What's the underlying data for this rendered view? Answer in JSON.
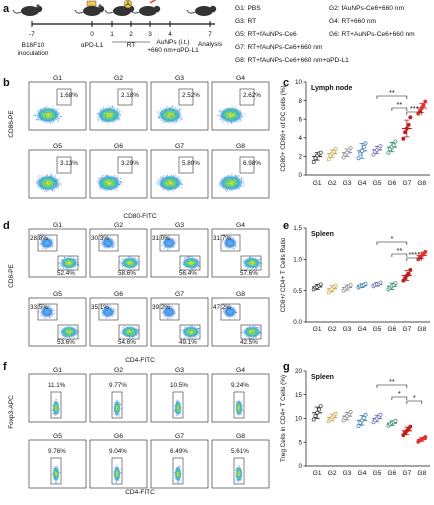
{
  "panel_a": {
    "label": "a",
    "timeline_ticks": [
      "-7",
      "0",
      "1",
      "2",
      "3",
      "4",
      "7"
    ],
    "events": {
      "inoculation": "B16F10\ninoculation",
      "antibody": "αPD-L1",
      "rt": "RT",
      "injection": "AuNPs (i.t.)\n+660 nm+αPD-L1",
      "analysis": "Analysis"
    },
    "groups_left": [
      "G1: PBS",
      "G3: RT",
      "G5: RT+fAuNPs-Ce6",
      "G7: RT+fAuNPs-Ce6+660 nm",
      "G8: RT+fAuNPs-Ce6+660 nm+αPD-L1"
    ],
    "groups_right": [
      "G2: fAuNPs-Ce6+660 nm",
      "G4: RT+660 nm",
      "G6: RT+AuNPs-Ce6+660 nm"
    ]
  },
  "panel_b": {
    "label": "b",
    "ylabel": "CD86-PE",
    "xlabel": "CD80-FITC",
    "plots": [
      {
        "group": "G1",
        "pct": "1.68%"
      },
      {
        "group": "G2",
        "pct": "2.18%"
      },
      {
        "group": "G3",
        "pct": "2.52%"
      },
      {
        "group": "G4",
        "pct": "2.62%"
      },
      {
        "group": "G5",
        "pct": "3.13%"
      },
      {
        "group": "G6",
        "pct": "3.29%"
      },
      {
        "group": "G7",
        "pct": "5.80%"
      },
      {
        "group": "G8",
        "pct": "6.98%"
      }
    ]
  },
  "panel_d": {
    "label": "d",
    "ylabel": "CD8-PE",
    "xlabel": "CD4-FITC",
    "plots": [
      {
        "group": "G1",
        "cd8": "28.8%",
        "cd4": "52.4%"
      },
      {
        "group": "G2",
        "cd8": "30.3%",
        "cd4": "58.6%"
      },
      {
        "group": "G3",
        "cd8": "31.0%",
        "cd4": "56.4%"
      },
      {
        "group": "G4",
        "cd8": "31.7%",
        "cd4": "57.6%"
      },
      {
        "group": "G5",
        "cd8": "33.5%",
        "cd4": "53.6%"
      },
      {
        "group": "G6",
        "cd8": "35.1%",
        "cd4": "54.6%"
      },
      {
        "group": "G7",
        "cd8": "39.2%",
        "cd4": "49.1%"
      },
      {
        "group": "G8",
        "cd8": "47.2%",
        "cd4": "42.5%"
      }
    ]
  },
  "panel_f": {
    "label": "f",
    "ylabel": "Foxp3-APC",
    "xlabel": "CD4-FITC",
    "plots": [
      {
        "group": "G1",
        "pct": "11.1%"
      },
      {
        "group": "G2",
        "pct": "9.77%"
      },
      {
        "group": "G3",
        "pct": "10.5%"
      },
      {
        "group": "G4",
        "pct": "9.24%"
      },
      {
        "group": "G5",
        "pct": "9.76%"
      },
      {
        "group": "G6",
        "pct": "9.04%"
      },
      {
        "group": "G7",
        "pct": "6.49%"
      },
      {
        "group": "G8",
        "pct": "5.61%"
      }
    ]
  },
  "group_colors": [
    "#333333",
    "#c9a64a",
    "#8a8a8a",
    "#3a7fb0",
    "#6e6eb8",
    "#2f8f6a",
    "#c21d1d",
    "#e0322e"
  ],
  "chart_data": [
    {
      "panel": "c",
      "type": "scatter",
      "title": "Lymph node",
      "ylabel": "CD80+ CD86+ of DC cells (%)",
      "categories": [
        "G1",
        "G2",
        "G3",
        "G4",
        "G5",
        "G6",
        "G7",
        "G8"
      ],
      "ylim": [
        0,
        10
      ],
      "yticks": [
        "0",
        "2",
        "4",
        "6",
        "8",
        "10"
      ],
      "means": [
        2.0,
        2.3,
        2.4,
        2.6,
        2.7,
        3.0,
        5.0,
        7.2
      ],
      "sd": [
        0.4,
        0.4,
        0.4,
        0.8,
        0.4,
        0.5,
        0.9,
        0.5
      ],
      "points": [
        [
          1.4,
          1.8,
          2.1,
          2.3,
          2.4
        ],
        [
          1.7,
          2.1,
          2.3,
          2.5,
          2.8
        ],
        [
          1.9,
          2.2,
          2.4,
          2.7,
          2.9
        ],
        [
          1.8,
          2.3,
          2.6,
          3.0,
          3.4
        ],
        [
          2.2,
          2.5,
          2.7,
          2.9,
          3.1
        ],
        [
          2.4,
          2.8,
          3.0,
          3.2,
          3.6
        ],
        [
          3.9,
          4.6,
          5.0,
          5.4,
          6.2
        ],
        [
          6.6,
          6.9,
          7.2,
          7.5,
          7.9
        ]
      ],
      "significance": [
        {
          "a": 5,
          "b": 7,
          "label": "**"
        },
        {
          "a": 6,
          "b": 7,
          "label": "**"
        },
        {
          "a": 7,
          "b": 8,
          "label": "***"
        }
      ]
    },
    {
      "panel": "e",
      "type": "scatter",
      "title": "Spleen",
      "ylabel": "CD8+/ CD4+ T Cells Ratio",
      "categories": [
        "G1",
        "G2",
        "G3",
        "G4",
        "G5",
        "G6",
        "G7",
        "G8"
      ],
      "ylim": [
        0.0,
        1.5
      ],
      "yticks": [
        "0.0",
        "0.5",
        "1.0",
        "1.5"
      ],
      "means": [
        0.56,
        0.53,
        0.55,
        0.58,
        0.6,
        0.57,
        0.74,
        1.06
      ],
      "sd": [
        0.04,
        0.05,
        0.04,
        0.03,
        0.03,
        0.05,
        0.08,
        0.05
      ],
      "points": [
        [
          0.52,
          0.55,
          0.56,
          0.58,
          0.6
        ],
        [
          0.47,
          0.51,
          0.53,
          0.56,
          0.58
        ],
        [
          0.5,
          0.53,
          0.55,
          0.57,
          0.59
        ],
        [
          0.55,
          0.57,
          0.58,
          0.59,
          0.61
        ],
        [
          0.57,
          0.59,
          0.6,
          0.61,
          0.63
        ],
        [
          0.52,
          0.55,
          0.57,
          0.59,
          0.62
        ],
        [
          0.66,
          0.7,
          0.74,
          0.77,
          0.83
        ],
        [
          1.0,
          1.03,
          1.06,
          1.09,
          1.12
        ]
      ],
      "significance": [
        {
          "a": 5,
          "b": 7,
          "label": "*"
        },
        {
          "a": 6,
          "b": 7,
          "label": "**"
        },
        {
          "a": 7,
          "b": 8,
          "label": "****"
        }
      ]
    },
    {
      "panel": "g",
      "type": "scatter",
      "title": "Spleen",
      "ylabel": "Treg Cells in CD4+ T Cells (%)",
      "categories": [
        "G1",
        "G2",
        "G3",
        "G4",
        "G5",
        "G6",
        "G7",
        "G8"
      ],
      "ylim": [
        0,
        20
      ],
      "yticks": [
        "0",
        "5",
        "10",
        "15",
        "20"
      ],
      "means": [
        11.2,
        10.2,
        10.5,
        9.6,
        10.0,
        9.0,
        7.4,
        5.6
      ],
      "sd": [
        1.2,
        0.7,
        0.8,
        1.0,
        0.7,
        0.5,
        0.8,
        0.4
      ],
      "points": [
        [
          9.8,
          10.5,
          11.2,
          11.9,
          12.6
        ],
        [
          9.4,
          9.8,
          10.2,
          10.6,
          11.0
        ],
        [
          9.6,
          10.1,
          10.5,
          10.9,
          11.4
        ],
        [
          8.4,
          9.1,
          9.6,
          10.1,
          10.8
        ],
        [
          9.2,
          9.6,
          10.0,
          10.4,
          10.8
        ],
        [
          8.5,
          8.8,
          9.0,
          9.2,
          9.5
        ],
        [
          6.5,
          7.0,
          7.4,
          7.8,
          8.3
        ],
        [
          5.1,
          5.4,
          5.6,
          5.8,
          6.1
        ]
      ],
      "significance": [
        {
          "a": 5,
          "b": 7,
          "label": "**"
        },
        {
          "a": 6,
          "b": 7,
          "label": "*"
        },
        {
          "a": 7,
          "b": 8,
          "label": "*"
        }
      ]
    }
  ]
}
